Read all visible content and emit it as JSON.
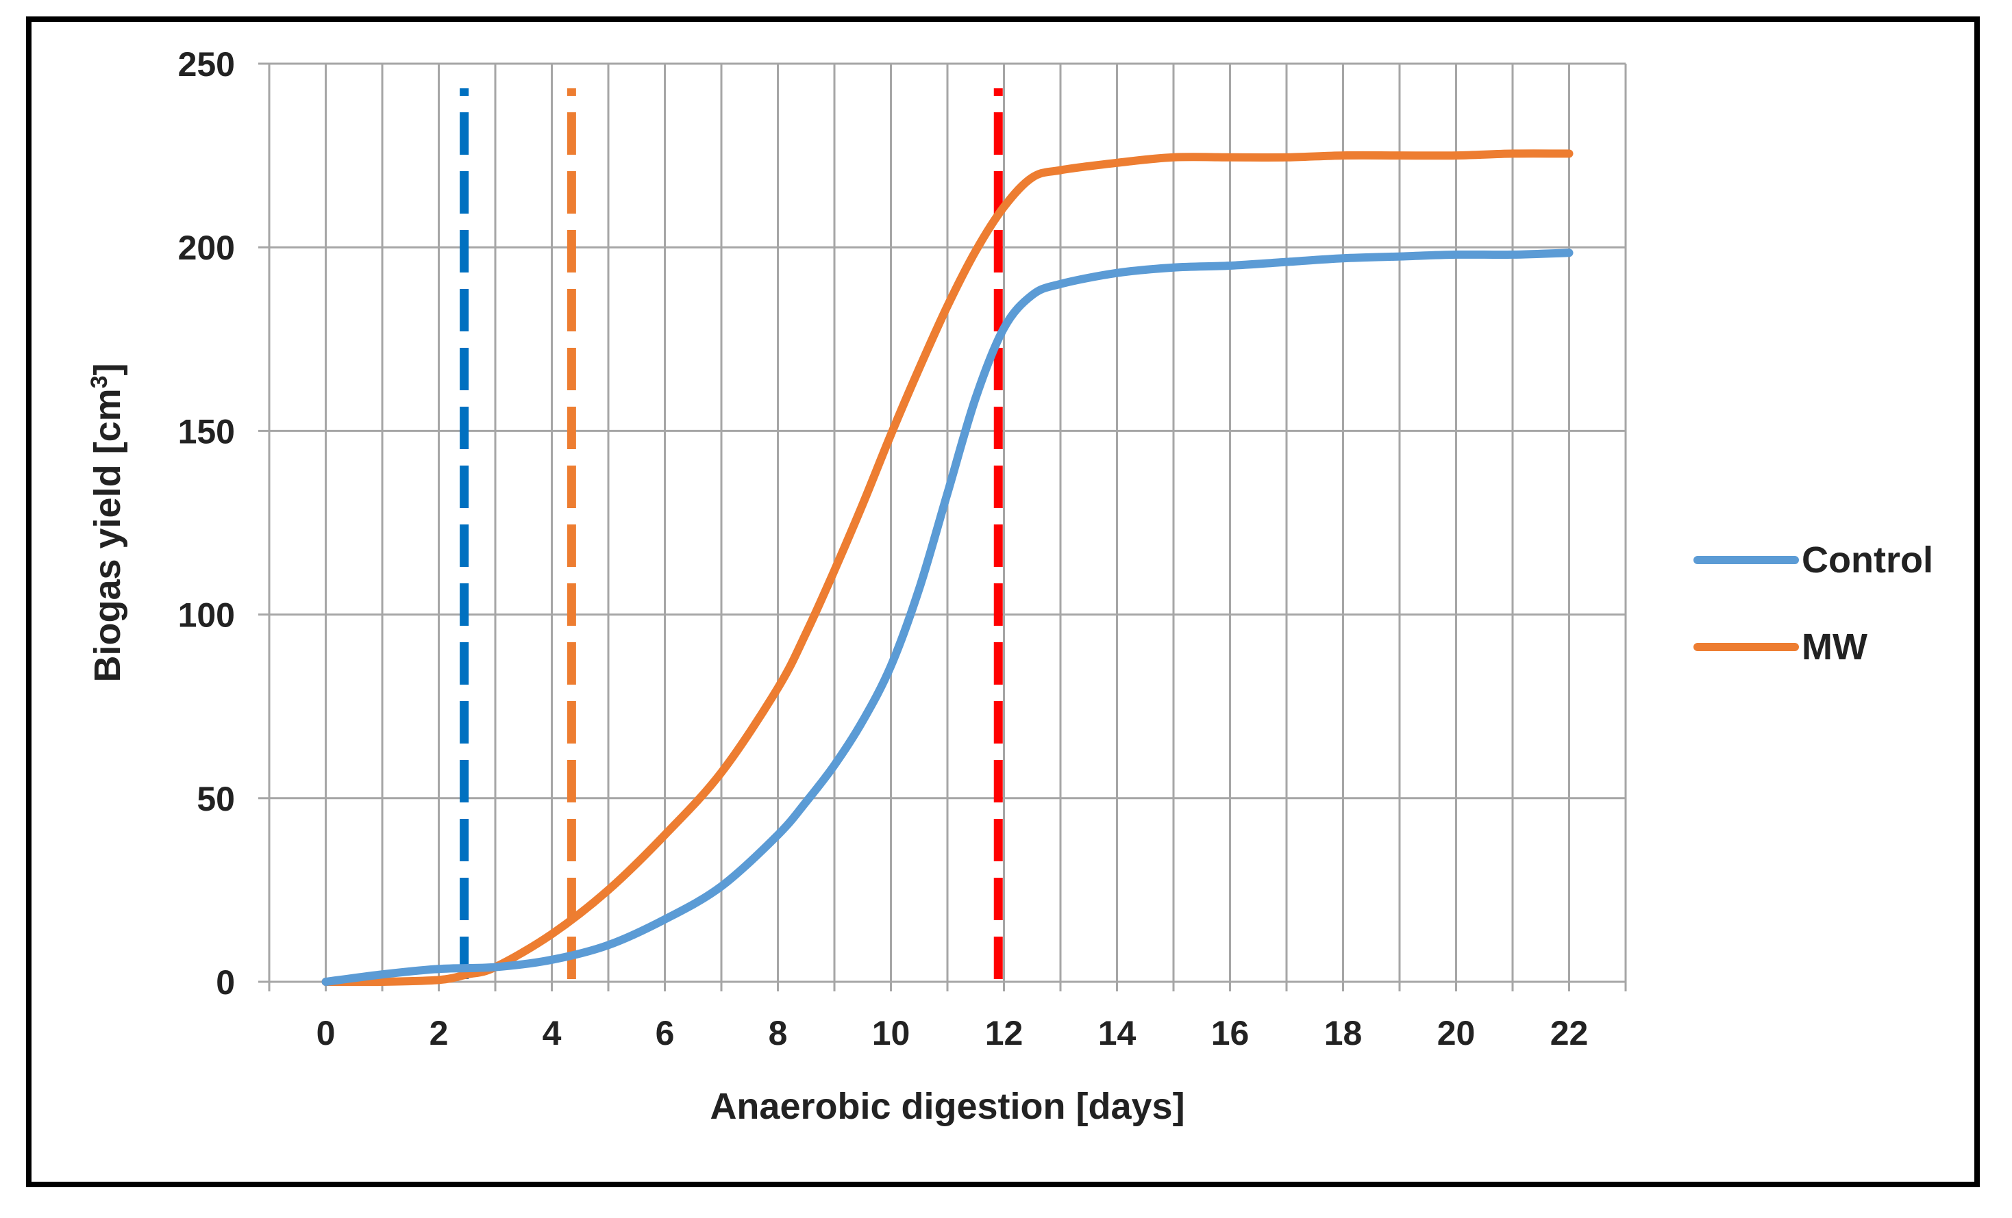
{
  "chart_data": {
    "type": "line",
    "title": "",
    "xlabel": "Anaerobic digestion [days]",
    "ylabel": "Biogas yield [cm",
    "ylabel_superscript": "3",
    "ylabel_suffix": "]",
    "xlim": [
      -1,
      23
    ],
    "ylim": [
      0,
      250
    ],
    "x_minor_step": 1,
    "x_ticks": [
      0,
      2,
      4,
      6,
      8,
      10,
      12,
      14,
      16,
      18,
      20,
      22
    ],
    "y_ticks": [
      0,
      50,
      100,
      150,
      200,
      250
    ],
    "grid": true,
    "legend_position": "right",
    "series": [
      {
        "name": "Control",
        "color": "#5B9BD5",
        "x": [
          0,
          1,
          2,
          3,
          4,
          5,
          6,
          7,
          8,
          8.5,
          9,
          9.5,
          10,
          10.5,
          11,
          11.5,
          12,
          12.5,
          13,
          14,
          15,
          16,
          17,
          18,
          19,
          20,
          21,
          22
        ],
        "y": [
          0,
          2,
          3.5,
          4,
          6,
          10,
          17,
          26,
          40,
          49,
          59,
          71,
          86,
          107,
          133,
          159,
          178,
          187,
          190,
          193,
          194.5,
          195,
          196,
          197,
          197.5,
          198,
          198,
          198.5
        ]
      },
      {
        "name": "MW",
        "color": "#ED7D31",
        "x": [
          0,
          1,
          2,
          2.5,
          3,
          4,
          5,
          6,
          7,
          8,
          8.5,
          9,
          9.5,
          10,
          10.5,
          11,
          11.5,
          12,
          12.5,
          13,
          14,
          15,
          16,
          17,
          18,
          19,
          20,
          21,
          22
        ],
        "y": [
          0,
          0,
          0.5,
          2,
          4,
          13,
          25,
          40,
          57,
          80,
          95,
          112,
          130,
          149,
          167,
          184,
          199,
          211,
          219,
          221,
          223,
          224.5,
          224.5,
          224.5,
          225,
          225,
          225,
          225.5,
          225.5
        ]
      }
    ],
    "reference_lines": [
      {
        "x": 2.45,
        "color": "#0070C0"
      },
      {
        "x": 4.35,
        "color": "#ED7D31"
      },
      {
        "x": 11.9,
        "color": "#FF0000"
      }
    ]
  }
}
